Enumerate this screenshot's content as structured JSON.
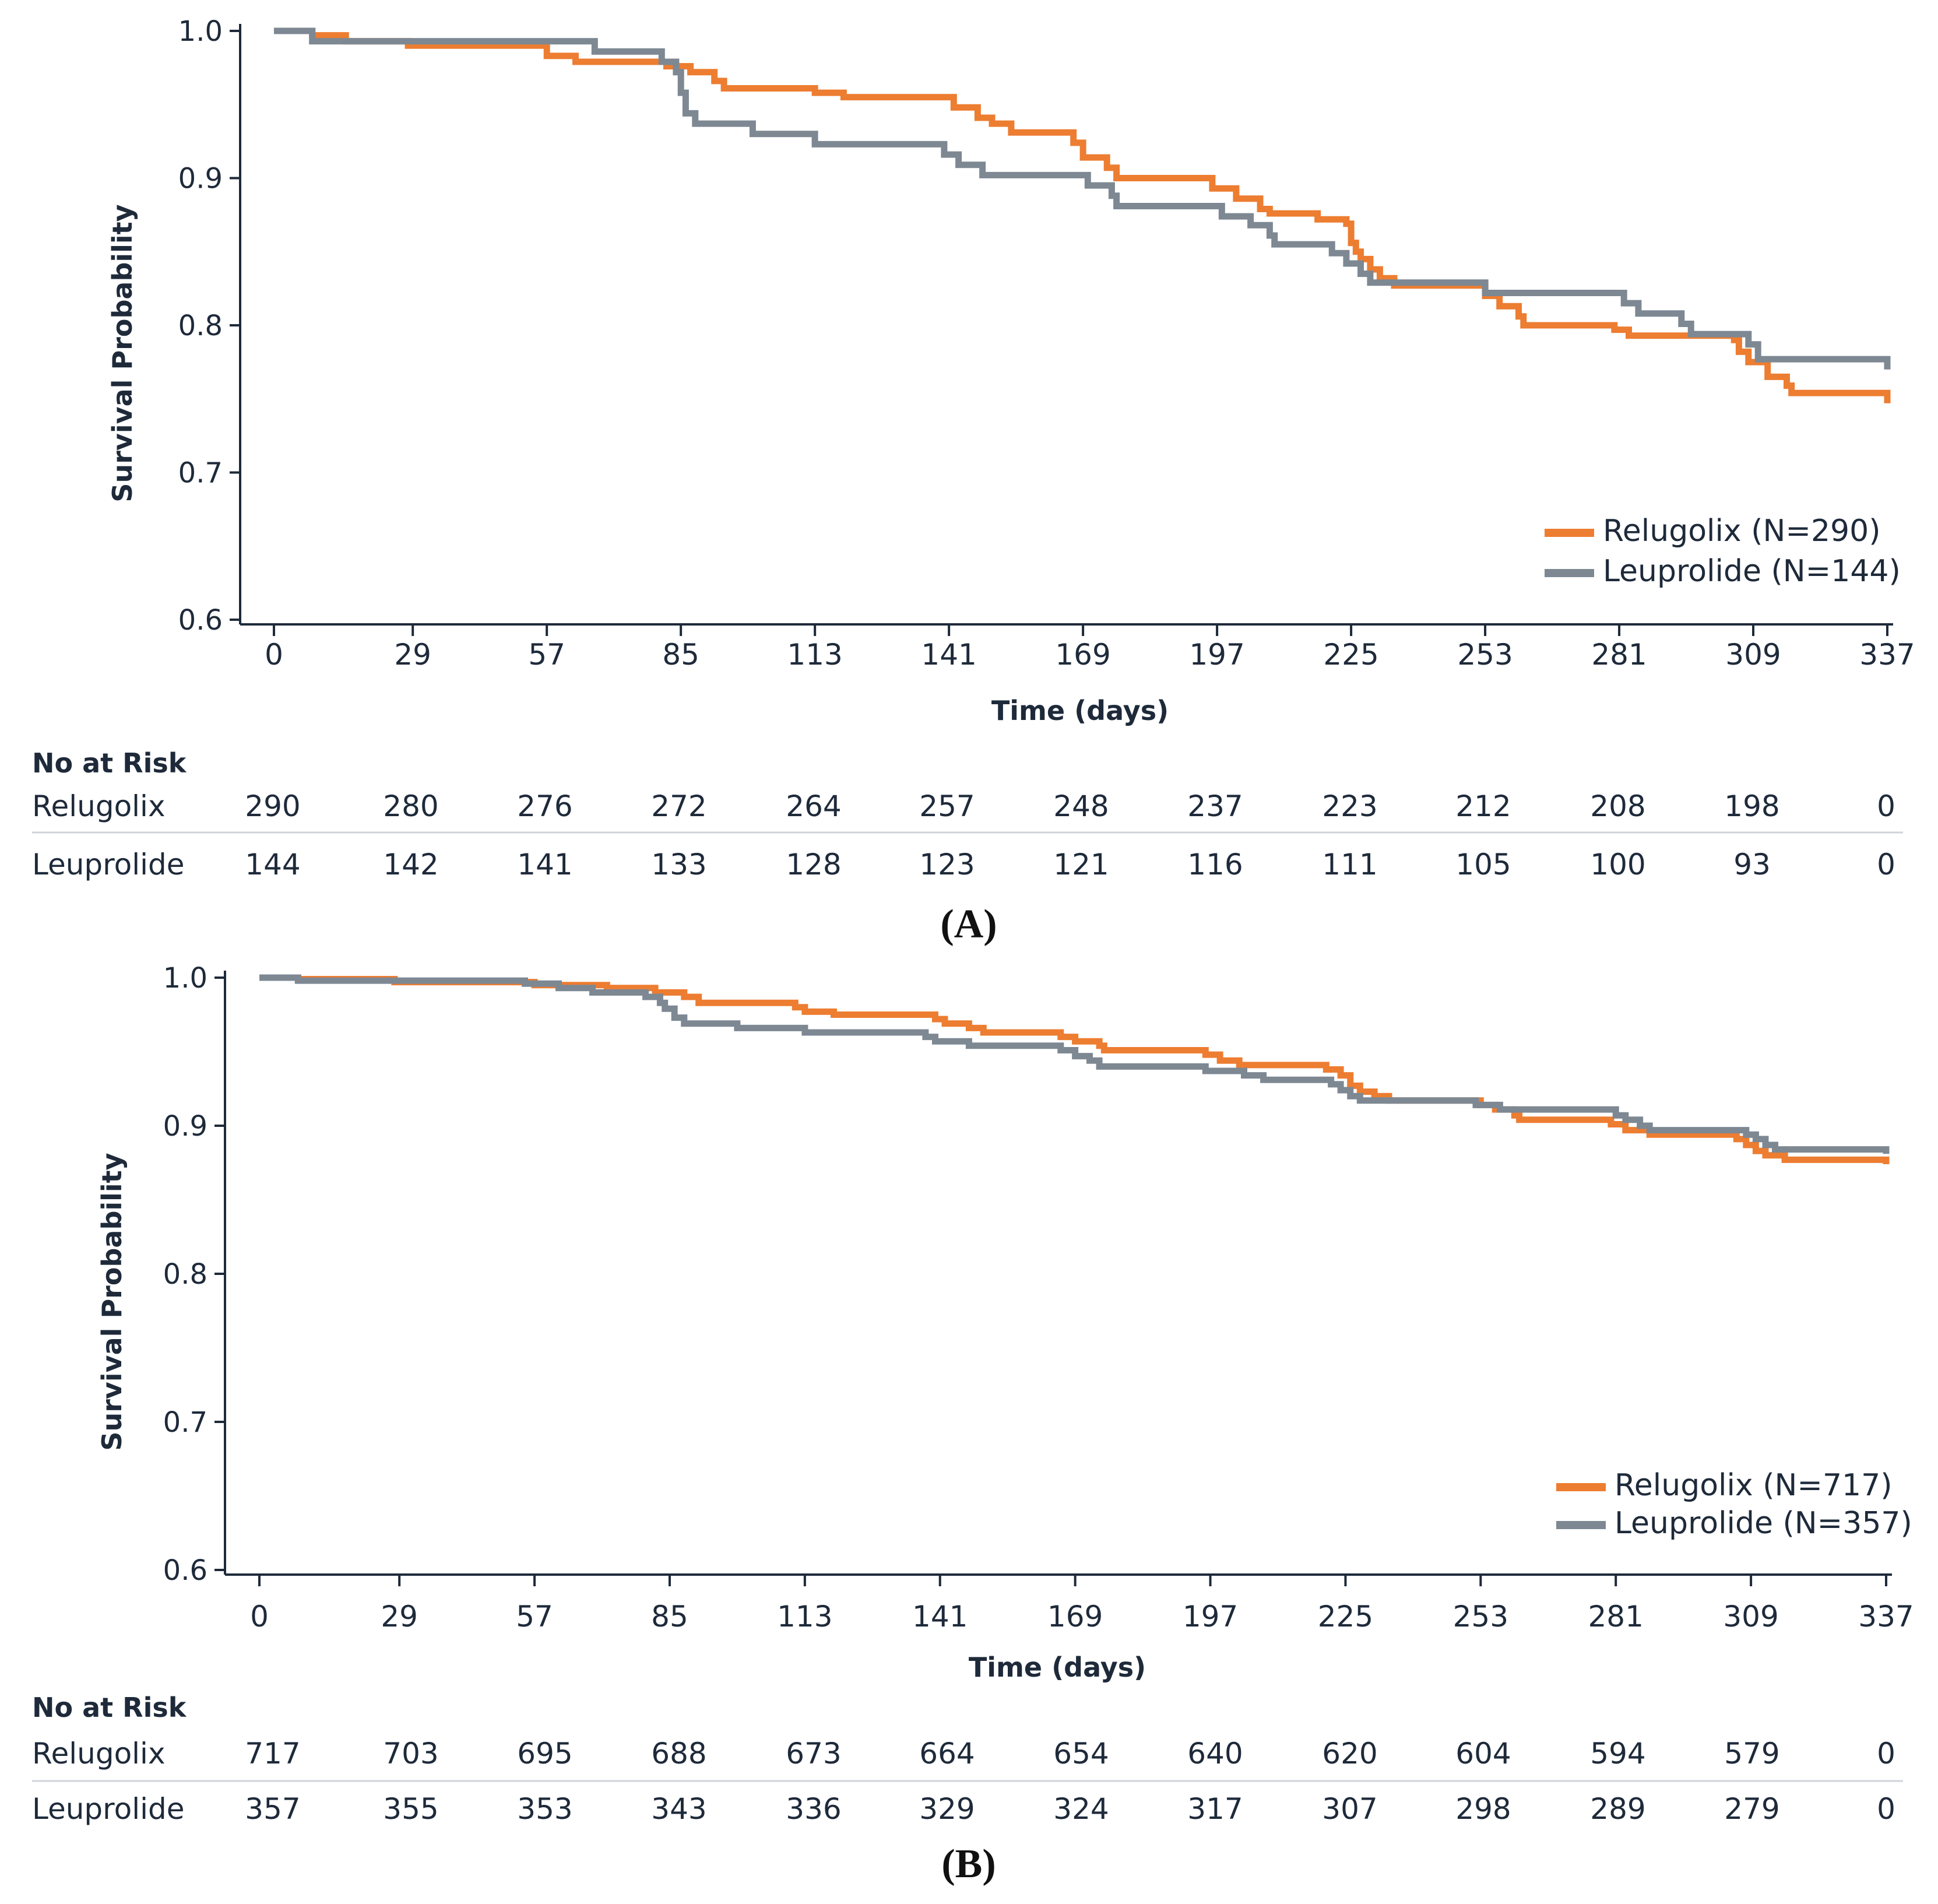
{
  "chart_data": [
    {
      "type": "line",
      "panel_label": "(A)",
      "xlabel": "Time (days)",
      "ylabel": "Survival Probability",
      "ylim": [
        0.6,
        1.0
      ],
      "yticks": [
        "0.6",
        "0.7",
        "0.8",
        "0.9",
        "1.0"
      ],
      "xlim": [
        0,
        337
      ],
      "xticks": [
        0,
        29,
        57,
        85,
        113,
        141,
        169,
        197,
        225,
        253,
        281,
        309,
        337
      ],
      "legend": "bottom-right",
      "series": [
        {
          "name": "Relugolix (N=290)",
          "color": "#ed7d31",
          "points": [
            [
              0,
              1.0
            ],
            [
              8,
              0.997
            ],
            [
              15,
              0.993
            ],
            [
              28,
              0.99
            ],
            [
              57,
              0.983
            ],
            [
              63,
              0.979
            ],
            [
              82,
              0.976
            ],
            [
              87,
              0.972
            ],
            [
              92,
              0.966
            ],
            [
              94,
              0.961
            ],
            [
              113,
              0.958
            ],
            [
              119,
              0.955
            ],
            [
              142,
              0.948
            ],
            [
              147,
              0.941
            ],
            [
              150,
              0.937
            ],
            [
              154,
              0.931
            ],
            [
              167,
              0.924
            ],
            [
              169,
              0.914
            ],
            [
              174,
              0.907
            ],
            [
              176,
              0.9
            ],
            [
              196,
              0.893
            ],
            [
              201,
              0.886
            ],
            [
              206,
              0.879
            ],
            [
              208,
              0.876
            ],
            [
              218,
              0.872
            ],
            [
              224,
              0.869
            ],
            [
              225,
              0.856
            ],
            [
              226,
              0.85
            ],
            [
              227,
              0.845
            ],
            [
              229,
              0.838
            ],
            [
              231,
              0.832
            ],
            [
              234,
              0.827
            ],
            [
              253,
              0.82
            ],
            [
              256,
              0.813
            ],
            [
              260,
              0.806
            ],
            [
              261,
              0.8
            ],
            [
              280,
              0.797
            ],
            [
              283,
              0.793
            ],
            [
              305,
              0.79
            ],
            [
              306,
              0.782
            ],
            [
              308,
              0.775
            ],
            [
              312,
              0.765
            ],
            [
              316,
              0.759
            ],
            [
              317,
              0.754
            ],
            [
              337,
              0.747
            ]
          ]
        },
        {
          "name": "Leuprolide (N=144)",
          "color": "#7d8893",
          "points": [
            [
              0,
              1.0
            ],
            [
              8,
              0.993
            ],
            [
              67,
              0.986
            ],
            [
              81,
              0.979
            ],
            [
              84,
              0.972
            ],
            [
              85,
              0.958
            ],
            [
              86,
              0.944
            ],
            [
              88,
              0.937
            ],
            [
              100,
              0.93
            ],
            [
              113,
              0.923
            ],
            [
              140,
              0.916
            ],
            [
              143,
              0.909
            ],
            [
              148,
              0.902
            ],
            [
              170,
              0.895
            ],
            [
              175,
              0.888
            ],
            [
              176,
              0.881
            ],
            [
              198,
              0.874
            ],
            [
              204,
              0.868
            ],
            [
              208,
              0.861
            ],
            [
              209,
              0.855
            ],
            [
              221,
              0.849
            ],
            [
              224,
              0.842
            ],
            [
              227,
              0.835
            ],
            [
              229,
              0.829
            ],
            [
              253,
              0.822
            ],
            [
              282,
              0.815
            ],
            [
              285,
              0.808
            ],
            [
              294,
              0.801
            ],
            [
              296,
              0.794
            ],
            [
              308,
              0.787
            ],
            [
              310,
              0.777
            ],
            [
              337,
              0.77
            ]
          ]
        }
      ],
      "risk_table": {
        "title": "No at Risk",
        "rows": [
          {
            "label": "Relugolix",
            "values": [
              "290",
              "280",
              "276",
              "272",
              "264",
              "257",
              "248",
              "237",
              "223",
              "212",
              "208",
              "198",
              "0"
            ]
          },
          {
            "label": "Leuprolide",
            "values": [
              "144",
              "142",
              "141",
              "133",
              "128",
              "123",
              "121",
              "116",
              "111",
              "105",
              "100",
              "93",
              "0"
            ]
          }
        ]
      }
    },
    {
      "type": "line",
      "panel_label": "(B)",
      "xlabel": "Time (days)",
      "ylabel": "Survival Probability",
      "ylim": [
        0.6,
        1.0
      ],
      "yticks": [
        "0.6",
        "0.7",
        "0.8",
        "0.9",
        "1.0"
      ],
      "xlim": [
        0,
        337
      ],
      "xticks": [
        0,
        29,
        57,
        85,
        113,
        141,
        169,
        197,
        225,
        253,
        281,
        309,
        337
      ],
      "legend": "bottom-right",
      "series": [
        {
          "name": "Relugolix (N=717)",
          "color": "#ed7d31",
          "points": [
            [
              0,
              1.0
            ],
            [
              8,
              0.999
            ],
            [
              28,
              0.997
            ],
            [
              57,
              0.995
            ],
            [
              72,
              0.993
            ],
            [
              82,
              0.99
            ],
            [
              88,
              0.987
            ],
            [
              91,
              0.983
            ],
            [
              111,
              0.98
            ],
            [
              113,
              0.977
            ],
            [
              119,
              0.975
            ],
            [
              140,
              0.972
            ],
            [
              142,
              0.969
            ],
            [
              147,
              0.966
            ],
            [
              150,
              0.963
            ],
            [
              166,
              0.96
            ],
            [
              169,
              0.957
            ],
            [
              174,
              0.954
            ],
            [
              175,
              0.951
            ],
            [
              196,
              0.948
            ],
            [
              199,
              0.944
            ],
            [
              203,
              0.941
            ],
            [
              221,
              0.938
            ],
            [
              224,
              0.934
            ],
            [
              226,
              0.927
            ],
            [
              228,
              0.923
            ],
            [
              231,
              0.92
            ],
            [
              234,
              0.917
            ],
            [
              253,
              0.914
            ],
            [
              256,
              0.911
            ],
            [
              260,
              0.907
            ],
            [
              261,
              0.904
            ],
            [
              280,
              0.901
            ],
            [
              283,
              0.897
            ],
            [
              288,
              0.894
            ],
            [
              306,
              0.891
            ],
            [
              308,
              0.887
            ],
            [
              310,
              0.883
            ],
            [
              312,
              0.88
            ],
            [
              316,
              0.877
            ],
            [
              337,
              0.874
            ]
          ]
        },
        {
          "name": "Leuprolide (N=357)",
          "color": "#7d8893",
          "points": [
            [
              0,
              1.0
            ],
            [
              8,
              0.998
            ],
            [
              55,
              0.996
            ],
            [
              62,
              0.993
            ],
            [
              69,
              0.99
            ],
            [
              80,
              0.987
            ],
            [
              83,
              0.983
            ],
            [
              84,
              0.979
            ],
            [
              86,
              0.973
            ],
            [
              88,
              0.969
            ],
            [
              99,
              0.966
            ],
            [
              113,
              0.963
            ],
            [
              138,
              0.96
            ],
            [
              140,
              0.957
            ],
            [
              147,
              0.954
            ],
            [
              166,
              0.951
            ],
            [
              169,
              0.947
            ],
            [
              172,
              0.944
            ],
            [
              174,
              0.94
            ],
            [
              196,
              0.937
            ],
            [
              204,
              0.934
            ],
            [
              208,
              0.931
            ],
            [
              222,
              0.928
            ],
            [
              224,
              0.924
            ],
            [
              226,
              0.92
            ],
            [
              228,
              0.917
            ],
            [
              252,
              0.914
            ],
            [
              257,
              0.911
            ],
            [
              281,
              0.907
            ],
            [
              283,
              0.904
            ],
            [
              286,
              0.9
            ],
            [
              288,
              0.897
            ],
            [
              308,
              0.894
            ],
            [
              310,
              0.891
            ],
            [
              312,
              0.887
            ],
            [
              314,
              0.884
            ],
            [
              337,
              0.881
            ]
          ]
        }
      ],
      "risk_table": {
        "title": "No at Risk",
        "rows": [
          {
            "label": "Relugolix",
            "values": [
              "717",
              "703",
              "695",
              "688",
              "673",
              "664",
              "654",
              "640",
              "620",
              "604",
              "594",
              "579",
              "0"
            ]
          },
          {
            "label": "Leuprolide",
            "values": [
              "357",
              "355",
              "353",
              "343",
              "336",
              "329",
              "324",
              "317",
              "307",
              "298",
              "289",
              "279",
              "0"
            ]
          }
        ]
      }
    }
  ]
}
